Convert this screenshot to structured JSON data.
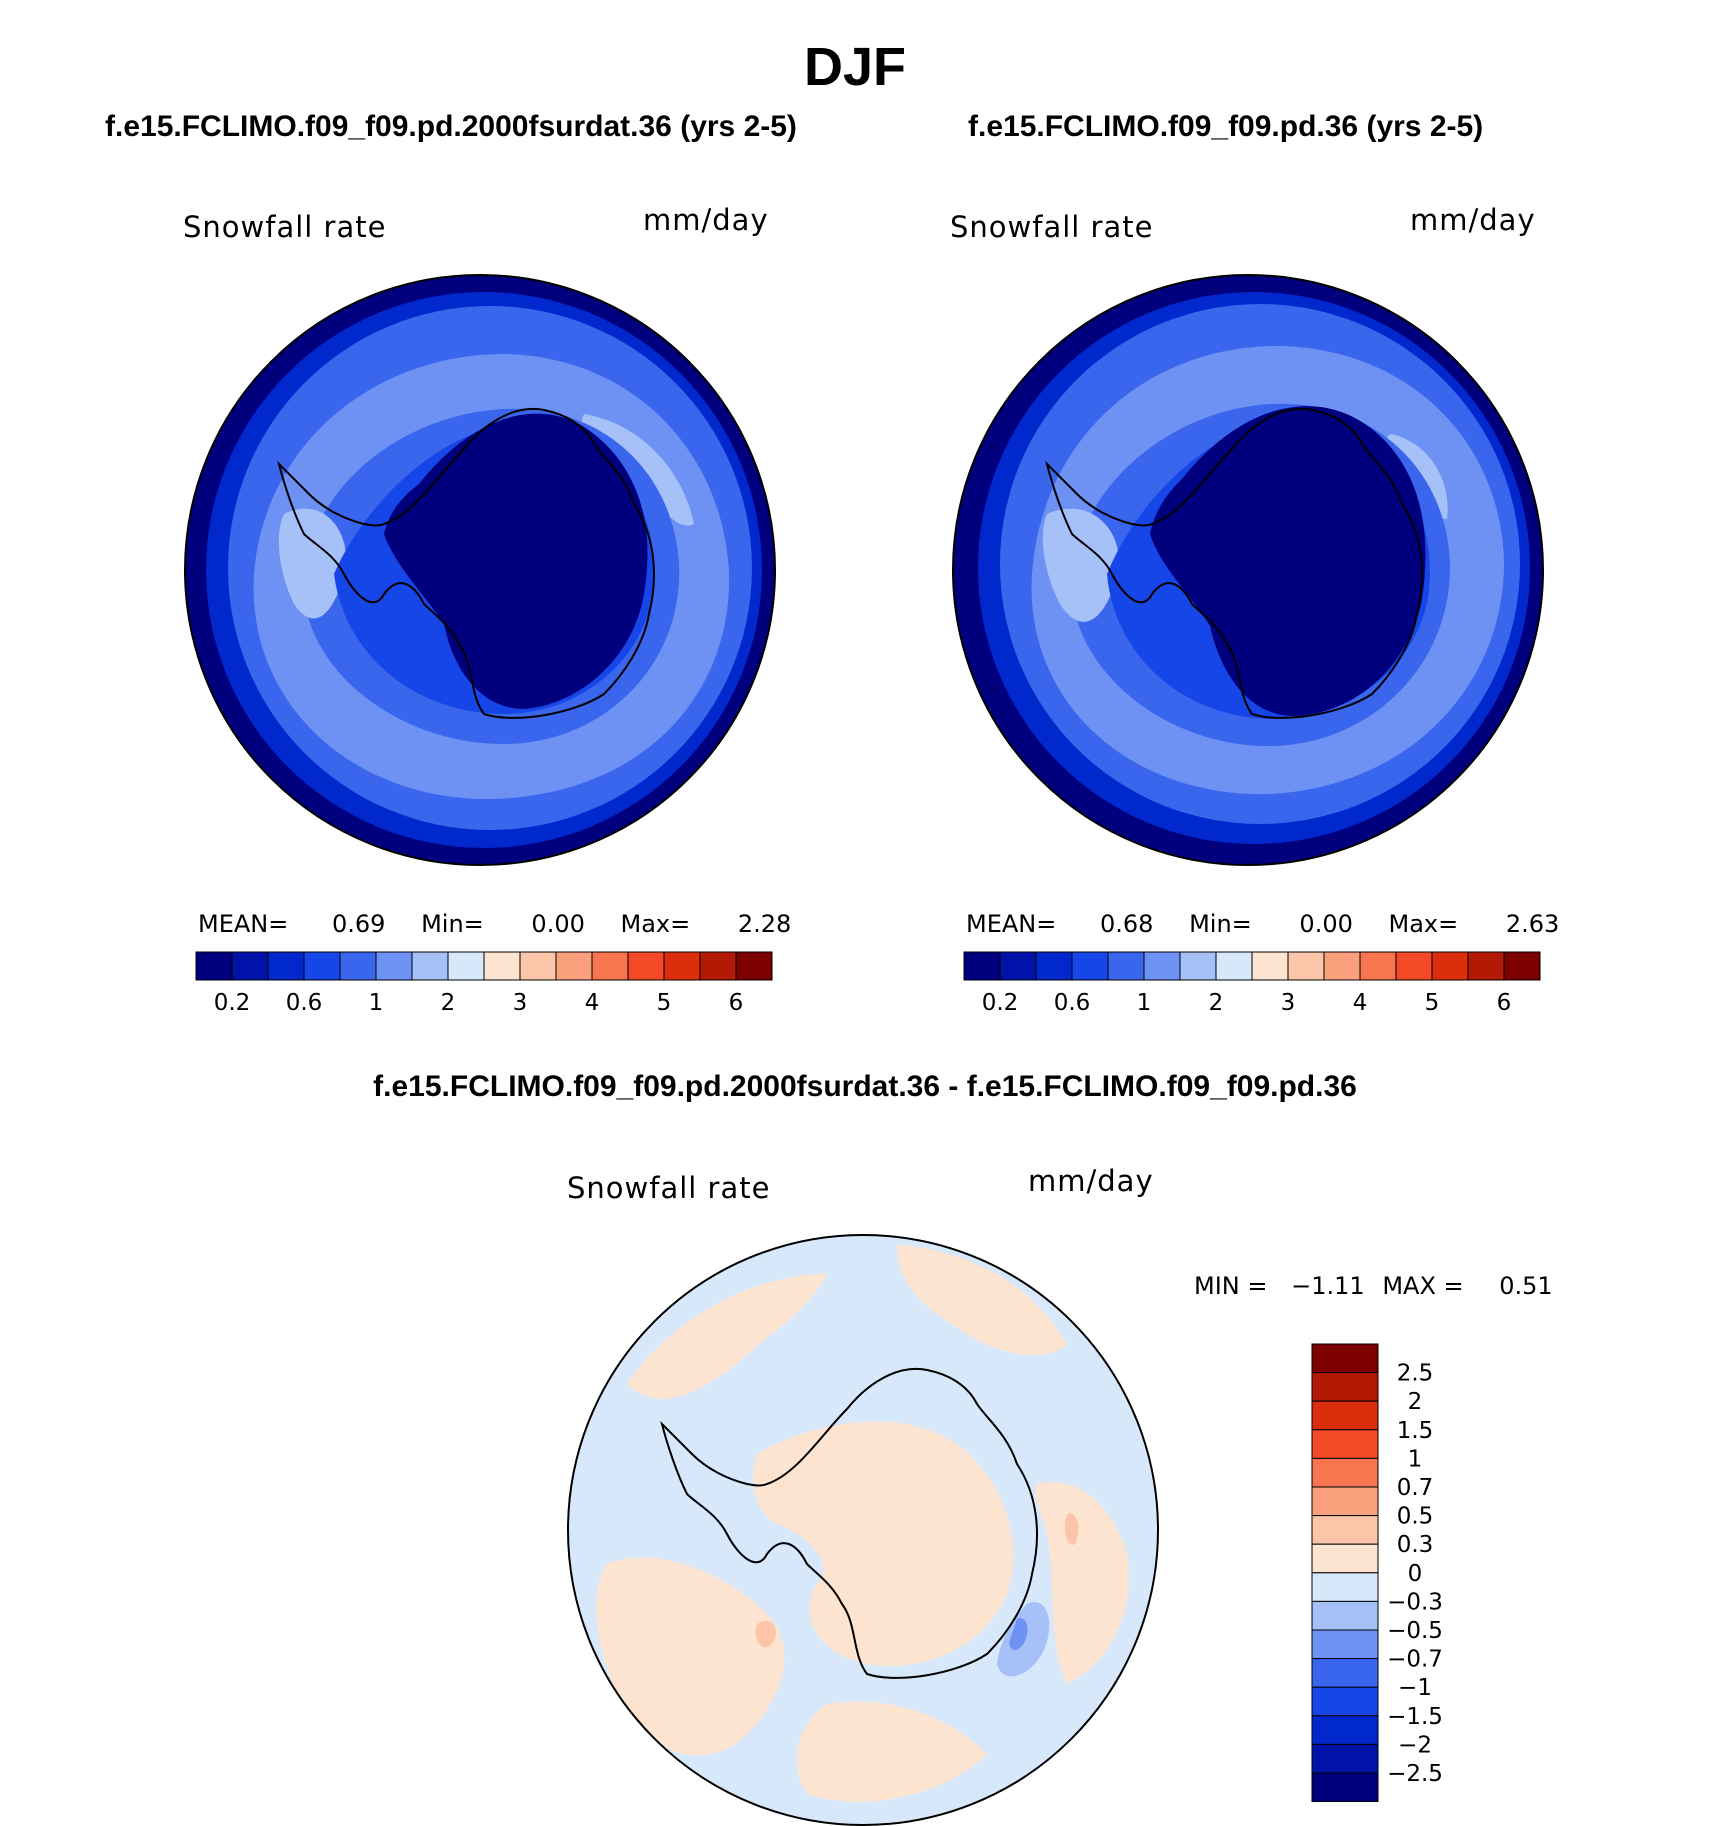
{
  "chart_data": [
    {
      "type": "heatmap",
      "projection": "south-polar-stereographic",
      "panel_title": "f.e15.FCLIMO.f09_f09.pd.2000fsurdat.36 (yrs 2-5)",
      "left_label": "Snowfall rate",
      "right_label": "mm/day",
      "stats": {
        "mean_label": "MEAN=",
        "mean": "0.69",
        "min_label": "Min=",
        "min": "0.00",
        "max_label": "Max=",
        "max": "2.28"
      },
      "colorbar": {
        "orientation": "horizontal",
        "tick_labels": [
          "0.2",
          "0.6",
          "1",
          "2",
          "3",
          "4",
          "5",
          "6"
        ],
        "colors": [
          "#00007f",
          "#0012a8",
          "#0028cc",
          "#1646e8",
          "#3a66ee",
          "#6e92f4",
          "#a6c0f8",
          "#d8e8fb",
          "#fde4d0",
          "#fcc4a8",
          "#fba07c",
          "#f87550",
          "#f24a26",
          "#dc2e0c",
          "#b21a06",
          "#7c0000"
        ]
      }
    },
    {
      "type": "heatmap",
      "projection": "south-polar-stereographic",
      "panel_title": "f.e15.FCLIMO.f09_f09.pd.36 (yrs 2-5)",
      "left_label": "Snowfall rate",
      "right_label": "mm/day",
      "stats": {
        "mean_label": "MEAN=",
        "mean": "0.68",
        "min_label": "Min=",
        "min": "0.00",
        "max_label": "Max=",
        "max": "2.63"
      },
      "colorbar": {
        "orientation": "horizontal",
        "tick_labels": [
          "0.2",
          "0.6",
          "1",
          "2",
          "3",
          "4",
          "5",
          "6"
        ],
        "colors": [
          "#00007f",
          "#0012a8",
          "#0028cc",
          "#1646e8",
          "#3a66ee",
          "#6e92f4",
          "#a6c0f8",
          "#d8e8fb",
          "#fde4d0",
          "#fcc4a8",
          "#fba07c",
          "#f87550",
          "#f24a26",
          "#dc2e0c",
          "#b21a06",
          "#7c0000"
        ]
      }
    },
    {
      "type": "heatmap",
      "projection": "south-polar-stereographic",
      "panel_title": "f.e15.FCLIMO.f09_f09.pd.2000fsurdat.36 - f.e15.FCLIMO.f09_f09.pd.36",
      "left_label": "Snowfall rate",
      "right_label": "mm/day",
      "stats": {
        "min_label": "MIN =",
        "min": "−1.11",
        "max_label": "MAX =",
        "max": "0.51"
      },
      "colorbar": {
        "orientation": "vertical",
        "tick_labels": [
          "2.5",
          "2",
          "1.5",
          "1",
          "0.7",
          "0.5",
          "0.3",
          "0",
          "−0.3",
          "−0.5",
          "−0.7",
          "−1",
          "−1.5",
          "−2",
          "−2.5"
        ],
        "colors": [
          "#7c0000",
          "#b21a06",
          "#dc2e0c",
          "#f24a26",
          "#f87550",
          "#fba07c",
          "#fcc4a8",
          "#fde4d0",
          "#d8e8fb",
          "#a6c0f8",
          "#6e92f4",
          "#3a66ee",
          "#1646e8",
          "#0028cc",
          "#0012a8",
          "#00007f"
        ]
      }
    }
  ],
  "figure": {
    "suptitle": "DJF"
  }
}
